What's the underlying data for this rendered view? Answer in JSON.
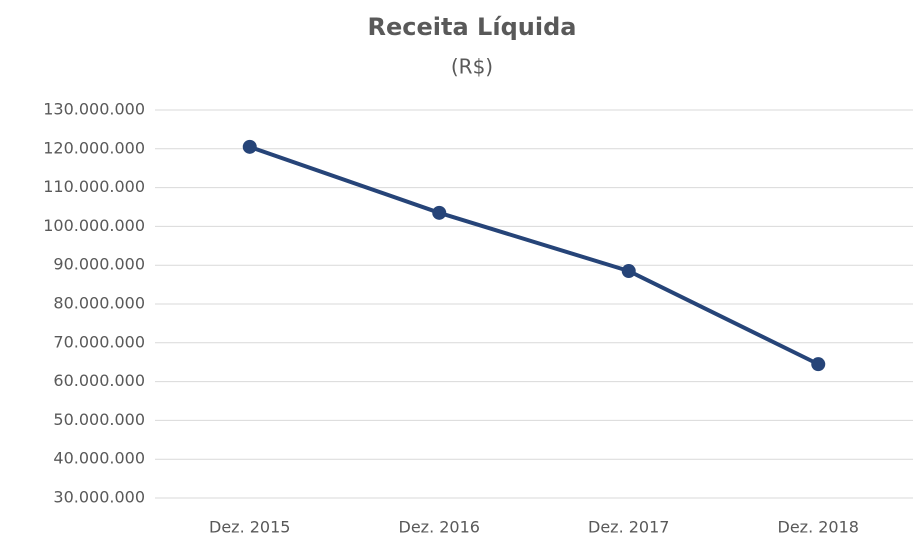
{
  "chart_data": {
    "type": "line",
    "title": "Receita Líquida",
    "subtitle": "(R$)",
    "categories": [
      "Dez. 2015",
      "Dez. 2016",
      "Dez. 2017",
      "Dez. 2018"
    ],
    "series": [
      {
        "name": "Receita Líquida",
        "color": "#264478",
        "values": [
          120500000,
          103500000,
          88500000,
          64500000
        ]
      }
    ],
    "ylim": [
      30000000,
      130000000
    ],
    "yticks": [
      {
        "value": 30000000,
        "label": "30.000.000"
      },
      {
        "value": 40000000,
        "label": "40.000.000"
      },
      {
        "value": 50000000,
        "label": "50.000.000"
      },
      {
        "value": 60000000,
        "label": "60.000.000"
      },
      {
        "value": 70000000,
        "label": "70.000.000"
      },
      {
        "value": 80000000,
        "label": "80.000.000"
      },
      {
        "value": 90000000,
        "label": "90.000.000"
      },
      {
        "value": 100000000,
        "label": "100.000.000"
      },
      {
        "value": 110000000,
        "label": "110.000.000"
      },
      {
        "value": 120000000,
        "label": "120.000.000"
      },
      {
        "value": 130000000,
        "label": "130.000.000"
      }
    ],
    "grid": true
  }
}
